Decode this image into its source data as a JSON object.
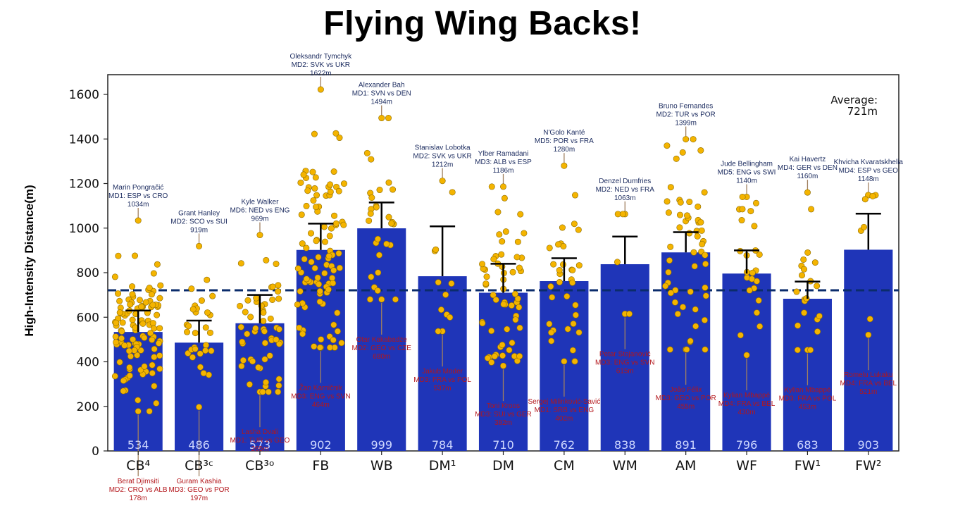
{
  "title": "Flying Wing Backs!",
  "chart_data": {
    "type": "bar",
    "ylabel": "High-Intensity Distance(m)",
    "xlabel": "",
    "ylim": [
      0,
      1680
    ],
    "yticks": [
      0,
      200,
      400,
      600,
      800,
      1000,
      1200,
      1400,
      1600
    ],
    "categories": [
      "CB⁴",
      "CB³ᶜ",
      "CB³ᵒ",
      "FB",
      "WB",
      "DM¹",
      "DM",
      "CM",
      "WM",
      "AM",
      "WF",
      "FW¹",
      "FW²"
    ],
    "values": [
      534,
      486,
      573,
      902,
      999,
      784,
      710,
      762,
      838,
      891,
      796,
      683,
      903
    ],
    "value_labels": [
      "534",
      "486",
      "573",
      "902",
      "999",
      "784",
      "710",
      "762",
      "838",
      "891",
      "796",
      "683",
      "903"
    ],
    "error_top": [
      630,
      585,
      700,
      1020,
      1115,
      1008,
      840,
      865,
      962,
      982,
      900,
      760,
      1065
    ],
    "average_line": 721,
    "average_label": [
      "Average:",
      "721m"
    ],
    "bar_color": "#1f35b8",
    "point_color": "#f4b400",
    "average_line_color": "#0b2c6b",
    "max_annotations": [
      {
        "lines": [
          "Marin Pongračić",
          "MD1: ESP vs CRO",
          "1034m"
        ],
        "value": 1034
      },
      {
        "lines": [
          "Grant Hanley",
          "MD2: SCO vs SUI",
          "919m"
        ],
        "value": 919
      },
      {
        "lines": [
          "Kyle Walker",
          "MD6: NED vs ENG",
          "969m"
        ],
        "value": 969
      },
      {
        "lines": [
          "Oleksandr Tymchyk",
          "MD2: SVK vs UKR",
          "1622m"
        ],
        "value": 1622
      },
      {
        "lines": [
          "Alexander Bah",
          "MD1: SVN vs DEN",
          "1494m"
        ],
        "value": 1494
      },
      {
        "lines": [
          "Stanislav Lobotka",
          "MD2: SVK vs UKR",
          "1212m"
        ],
        "value": 1212
      },
      {
        "lines": [
          "Ylber Ramadani",
          "MD3: ALB vs ESP",
          "1186m"
        ],
        "value": 1186
      },
      {
        "lines": [
          "N'Golo Kanté",
          "MD5: POR vs FRA",
          "1280m"
        ],
        "value": 1280
      },
      {
        "lines": [
          "Denzel Dumfries",
          "MD2: NED vs FRA",
          "1063m"
        ],
        "value": 1063
      },
      {
        "lines": [
          "Bruno Fernandes",
          "MD2: TUR vs POR",
          "1399m"
        ],
        "value": 1399
      },
      {
        "lines": [
          "Jude Bellingham",
          "MD5: ENG vs SWI",
          "1140m"
        ],
        "value": 1140
      },
      {
        "lines": [
          "Kai Havertz",
          "MD4: GER vs DEN",
          "1160m"
        ],
        "value": 1160
      },
      {
        "lines": [
          "Khvicha Kvaratskhelia",
          "MD4: ESP vs GEO",
          "1148m"
        ],
        "value": 1148
      }
    ],
    "min_annotations": [
      {
        "lines": [
          "Berat Djimsiti",
          "MD2: CRO vs ALB",
          "178m"
        ],
        "value": 178
      },
      {
        "lines": [
          "Guram Kashia",
          "MD3: GEO vs POR",
          "197m"
        ],
        "value": 197
      },
      {
        "lines": [
          "Lasha Dvali",
          "MD1: TUR vs GEO",
          "265m"
        ],
        "value": 265
      },
      {
        "lines": [
          "Žan Karničnik",
          "MD3: ENG vs SVN",
          "464m"
        ],
        "value": 464
      },
      {
        "lines": [
          "Otar Kakabadze",
          "MD2: GEO vs CZE",
          "680m"
        ],
        "value": 680
      },
      {
        "lines": [
          "Jakub Moder",
          "MD3: FRA vs POL",
          "537m"
        ],
        "value": 537
      },
      {
        "lines": [
          "Toni Kroos",
          "MD3: SUI vs GER",
          "382m"
        ],
        "value": 382
      },
      {
        "lines": [
          "Sergej Milinković-Savić",
          "MD1: SRB vs ENG",
          "402m"
        ],
        "value": 402
      },
      {
        "lines": [
          "Petar Stojanović",
          "MD3: ENG vs SVN",
          "615m"
        ],
        "value": 615
      },
      {
        "lines": [
          "João Félix",
          "MD3: GEO vs POR",
          "455m"
        ],
        "value": 455
      },
      {
        "lines": [
          "Kylian Mbappé",
          "MD4: FRA vs BEL",
          "430m"
        ],
        "value": 430
      },
      {
        "lines": [
          "Kylian Mbappé",
          "MD3: FRA vs POL",
          "453m"
        ],
        "value": 453
      },
      {
        "lines": [
          "Romelu Lukaku",
          "MD4: FRA vs BEL",
          "521m"
        ],
        "value": 521
      }
    ],
    "points_per_category": [
      110,
      30,
      55,
      95,
      30,
      12,
      60,
      35,
      6,
      55,
      25,
      22,
      9
    ]
  }
}
